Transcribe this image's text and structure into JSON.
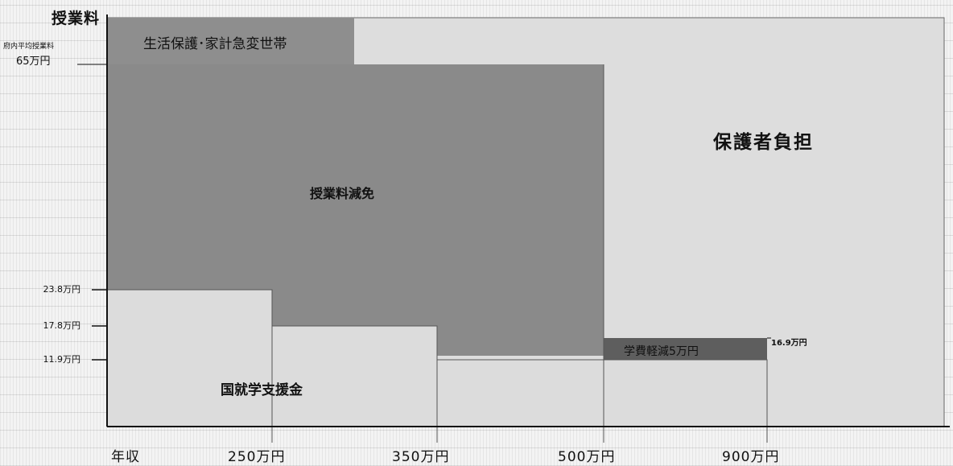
{
  "y_axis": {
    "title": "授業料",
    "avg_label": "府内平均授業料",
    "avg_value": "65万円",
    "ticks": [
      "23.8万円",
      "17.8万円",
      "11.9万円"
    ]
  },
  "x_axis": {
    "label": "年収",
    "ticks": [
      "250万円",
      "350万円",
      "500万円",
      "900万円"
    ]
  },
  "regions": {
    "seikatsu": "生活保護･家計急変世帯",
    "hogosha": "保護者負担",
    "genmen": "授業料減免",
    "shuugaku": "国就学支援金",
    "gakuhi": "学費軽減5万円",
    "gakuhi_top": "16.9万円"
  },
  "colors": {
    "light_fill": "#d8d8d8",
    "dark_fill": "#888888",
    "darker_fill": "#5e5e5e",
    "axis": "#111111",
    "background": "#f3f3f3"
  }
}
